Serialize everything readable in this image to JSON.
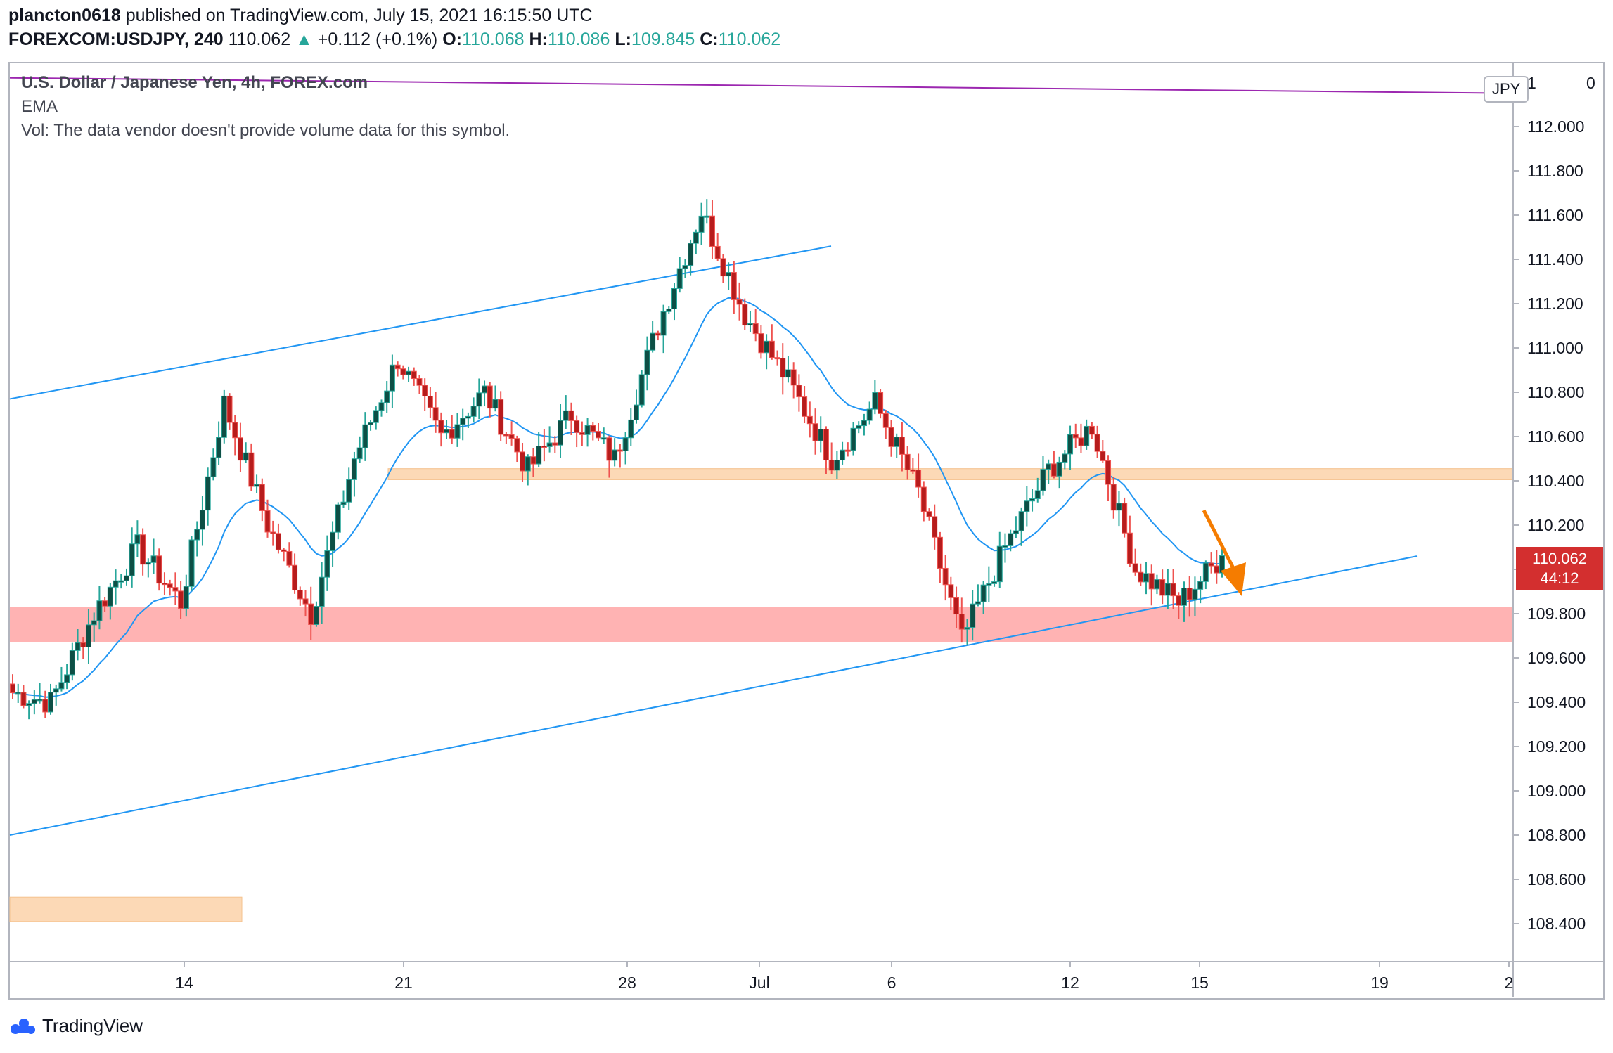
{
  "header": {
    "line1": {
      "author": "plancton0618",
      "published_on": "published on TradingView.com, July 15, 2021 16:15:50 UTC"
    },
    "line2": {
      "symbol": "FOREXCOM:USDJPY, 240",
      "last": "110.062",
      "change_arrow": "▲",
      "change": "+0.112 (+0.1%)",
      "o_label": "O:",
      "o": "110.068",
      "h_label": "H:",
      "h": "110.086",
      "l_label": "L:",
      "l": "109.845",
      "c_label": "C:",
      "c": "110.062"
    }
  },
  "legend": {
    "title": "U.S. Dollar / Japanese Yen, 4h, FOREX.com",
    "ema": "EMA",
    "vol": "Vol: The data vendor doesn't provide volume data for this symbol."
  },
  "currency_badge": "JPY",
  "price_tag": {
    "price": "110.062",
    "countdown": "44:12"
  },
  "footer": {
    "brand": "TradingView",
    "logo_icon": "tradingview-logo-icon"
  },
  "colors": {
    "up": "#26a69a",
    "down": "#ef5350",
    "candle_up_body": "#0d4f45",
    "candle_down_body": "#b71c1c",
    "ema": "#2196f3",
    "trendline": "#2196f3",
    "resistance_line": "#9c27b0",
    "support_zone": "#ffb3b3",
    "resistance_zone": "#fcd9b6",
    "arrow": "#f57c00",
    "price_tag": "#d32f2f"
  },
  "chart_data": {
    "type": "candlestick",
    "y_axis": {
      "range": [
        108.25,
        112.3
      ],
      "ticks": [
        "112.000",
        "111.800",
        "111.600",
        "111.400",
        "111.200",
        "111.000",
        "110.800",
        "110.600",
        "110.400",
        "110.200",
        "110.000",
        "109.800",
        "109.600",
        "109.400",
        "109.200",
        "109.000",
        "108.800",
        "108.600",
        "108.400"
      ],
      "top_tick_partial": "1",
      "top_tick_partial_right": "0"
    },
    "x_axis": {
      "labels": [
        "14",
        "21",
        "28",
        "Jul",
        "6",
        "12",
        "15",
        "19",
        "2"
      ]
    },
    "grid": false,
    "last_price": 110.062,
    "candles_approx": {
      "note_ranges": "",
      "segments": [
        {
          "from": 109.45,
          "to": 109.4
        },
        {
          "from": 109.4,
          "to": 109.8
        },
        {
          "from": 109.8,
          "to": 110.1
        },
        {
          "from": 110.1,
          "to": 109.85
        },
        {
          "from": 109.85,
          "to": 110.75
        },
        {
          "from": 110.75,
          "to": 110.2
        },
        {
          "from": 110.2,
          "to": 109.8
        },
        {
          "from": 109.8,
          "to": 110.5
        },
        {
          "from": 110.5,
          "to": 110.95
        },
        {
          "from": 110.95,
          "to": 110.6
        },
        {
          "from": 110.6,
          "to": 110.8
        },
        {
          "from": 110.8,
          "to": 110.45
        },
        {
          "from": 110.45,
          "to": 110.7
        },
        {
          "from": 110.7,
          "to": 110.5
        },
        {
          "from": 110.5,
          "to": 111.1
        },
        {
          "from": 111.1,
          "to": 111.62
        },
        {
          "from": 111.62,
          "to": 111.15
        },
        {
          "from": 111.15,
          "to": 110.85
        },
        {
          "from": 110.85,
          "to": 110.5
        },
        {
          "from": 110.5,
          "to": 110.75
        },
        {
          "from": 110.75,
          "to": 110.35
        },
        {
          "from": 110.35,
          "to": 109.68
        },
        {
          "from": 109.68,
          "to": 110.1
        },
        {
          "from": 110.1,
          "to": 110.45
        },
        {
          "from": 110.45,
          "to": 110.65
        },
        {
          "from": 110.65,
          "to": 110.0
        },
        {
          "from": 110.0,
          "to": 109.85
        },
        {
          "from": 109.85,
          "to": 110.06
        }
      ]
    },
    "drawings": {
      "upper_channel_line": {
        "from": 110.77,
        "to": 111.46
      },
      "lower_channel_line": {
        "from": 108.8,
        "to": 110.06
      },
      "resistance_line": {
        "from": 112.22,
        "to": 112.15
      },
      "zones": [
        {
          "name": "support",
          "low": 109.67,
          "high": 109.83
        },
        {
          "name": "resistance",
          "low": 110.405,
          "high": 110.455
        },
        {
          "name": "lower",
          "low": 108.41,
          "high": 108.52
        }
      ]
    }
  }
}
